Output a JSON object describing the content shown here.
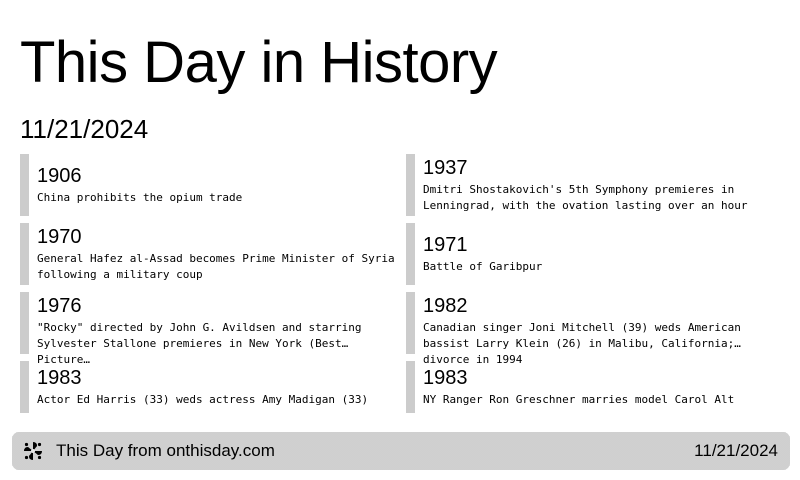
{
  "header": {
    "title": "This Day in History",
    "date": "11/21/2024"
  },
  "events": [
    {
      "year": "1906",
      "description": "China prohibits the opium trade"
    },
    {
      "year": "1937",
      "description": "Dmitri Shostakovich's 5th Symphony premieres in Lenningrad, with the ovation lasting over an hour"
    },
    {
      "year": "1970",
      "description": "General Hafez al-Assad becomes Prime Minister of Syria following a military coup"
    },
    {
      "year": "1971",
      "description": "Battle of Garibpur"
    },
    {
      "year": "1976",
      "description": "\"Rocky\" directed by John G. Avildsen and starring Sylvester Stallone premieres in New York (Best Picture…"
    },
    {
      "year": "1982",
      "description": "Canadian singer Joni Mitchell (39) weds American bassist Larry Klein (26) in Malibu, California; divorce in 1994"
    },
    {
      "year": "1983",
      "description": "Actor Ed Harris (33) weds actress Amy Madigan (33)"
    },
    {
      "year": "1983",
      "description": "NY Ranger Ron Greschner marries model Carol Alt"
    }
  ],
  "footer": {
    "logo_icon": "pinwheel-logo-icon",
    "source": "This Day from onthisday.com",
    "date": "11/21/2024"
  }
}
